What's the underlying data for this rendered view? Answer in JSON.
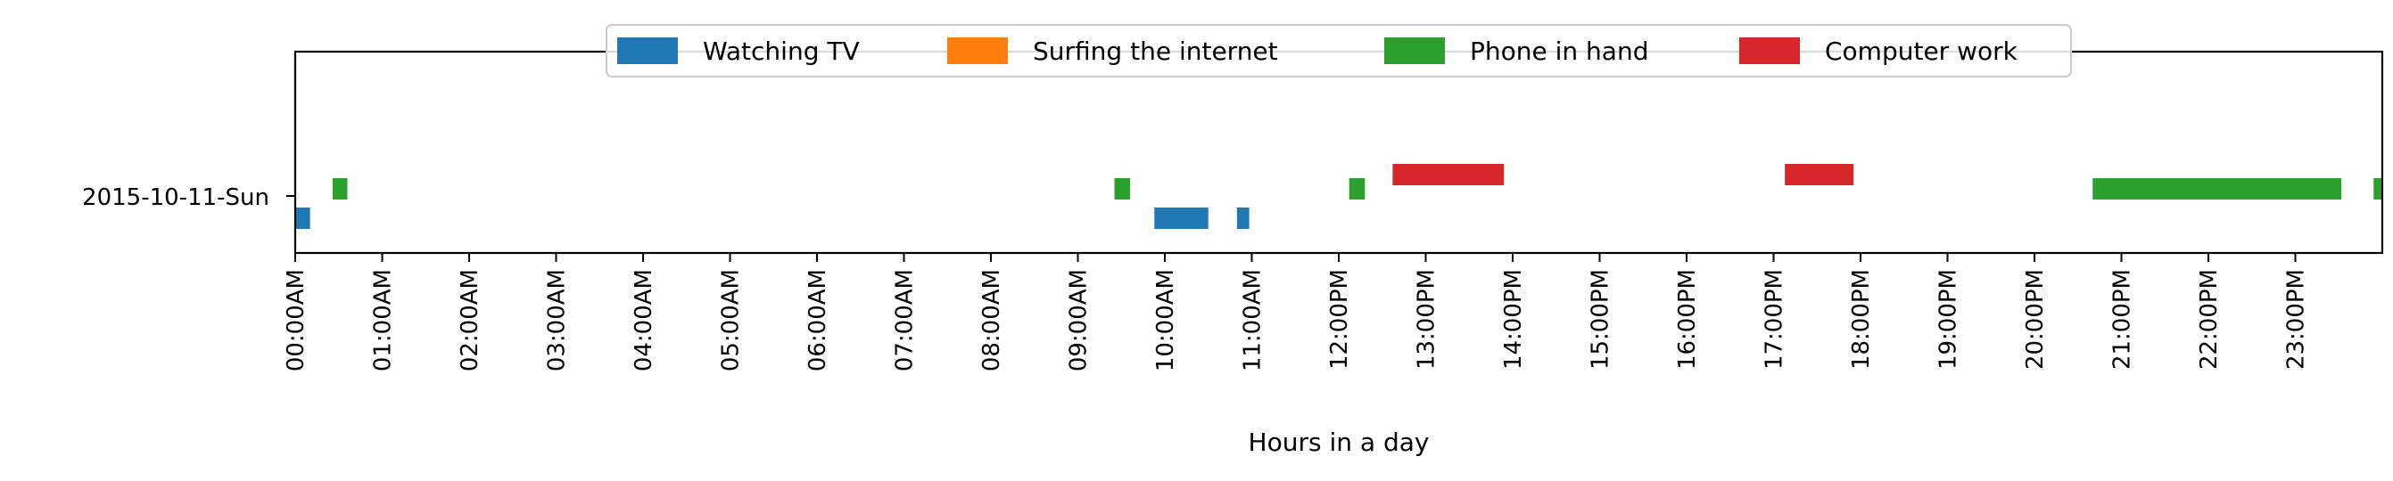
{
  "chart_data": {
    "type": "bar",
    "orientation": "horizontal-timeline",
    "title": "",
    "xlabel": "Hours in a day",
    "ylabel": "",
    "xlim": [
      0,
      24
    ],
    "x_unit": "hour",
    "grid": false,
    "legend_position": "top-center",
    "categories": [
      "2015-10-11-Sun"
    ],
    "xticks": [
      0,
      1,
      2,
      3,
      4,
      5,
      6,
      7,
      8,
      9,
      10,
      11,
      12,
      13,
      14,
      15,
      16,
      17,
      18,
      19,
      20,
      21,
      22,
      23
    ],
    "xtick_labels": [
      "00:00AM",
      "01:00AM",
      "02:00AM",
      "03:00AM",
      "04:00AM",
      "05:00AM",
      "06:00AM",
      "07:00AM",
      "08:00AM",
      "09:00AM",
      "10:00AM",
      "11:00AM",
      "12:00PM",
      "13:00PM",
      "14:00PM",
      "15:00PM",
      "16:00PM",
      "17:00PM",
      "18:00PM",
      "19:00PM",
      "20:00PM",
      "21:00PM",
      "22:00PM",
      "23:00PM"
    ],
    "series": [
      {
        "name": "Watching TV",
        "color": "#1f77b4",
        "lane": -1,
        "intervals": [
          [
            0.0,
            0.17
          ],
          [
            9.88,
            10.5
          ],
          [
            10.83,
            10.97
          ]
        ]
      },
      {
        "name": "Surfing the internet",
        "color": "#ff7f0e",
        "lane": 0,
        "intervals": []
      },
      {
        "name": "Phone in hand",
        "color": "#2ca02c",
        "lane": 0,
        "intervals": [
          [
            0.43,
            0.6
          ],
          [
            9.42,
            9.6
          ],
          [
            12.12,
            12.3
          ],
          [
            20.67,
            23.53
          ],
          [
            23.9,
            24.0
          ]
        ]
      },
      {
        "name": "Computer work",
        "color": "#d62728",
        "lane": 1,
        "intervals": [
          [
            12.62,
            13.9
          ],
          [
            17.13,
            17.92
          ]
        ]
      }
    ]
  }
}
